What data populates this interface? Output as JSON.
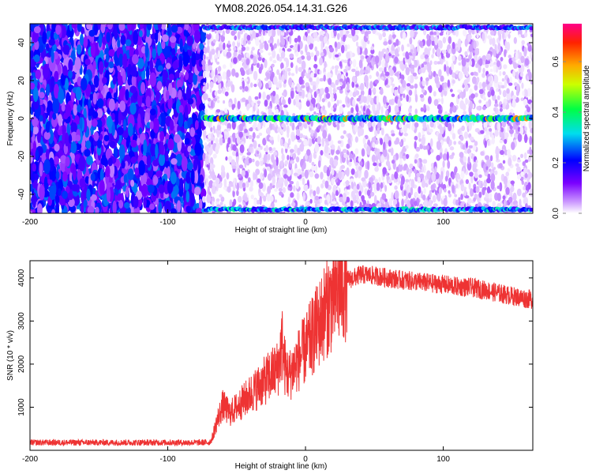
{
  "title": "YM08.2026.054.14.31.G26",
  "chart_data": [
    {
      "type": "heatmap",
      "xlabel": "Height of straight line (km)",
      "ylabel": "Frequency (Hz)",
      "xlim": [
        -200,
        165
      ],
      "ylim": [
        -50,
        50
      ],
      "xticks": [
        -200,
        -100,
        0,
        100
      ],
      "yticks": [
        -40,
        -20,
        0,
        20,
        40
      ],
      "colorbar": {
        "label": "Normalized spectral amplitude",
        "range": [
          0.0,
          0.75
        ],
        "ticks": [
          0.0,
          0.2,
          0.4,
          0.6
        ]
      },
      "features": [
        {
          "kind": "noise",
          "x": [
            -200,
            -74
          ],
          "density": "high",
          "level": 0.18
        },
        {
          "kind": "noise",
          "x": [
            -74,
            165
          ],
          "density": "sparse",
          "level": 0.05
        },
        {
          "kind": "carrier",
          "y": 0,
          "x": [
            -74,
            165
          ],
          "level": 0.3
        },
        {
          "kind": "edge-band",
          "y": -48,
          "x": [
            -74,
            165
          ],
          "level": 0.25
        },
        {
          "kind": "edge-band",
          "y": 48,
          "x": [
            -74,
            165
          ],
          "level": 0.2
        }
      ]
    },
    {
      "type": "line",
      "xlabel": "Height of straight line (km)",
      "ylabel": "SNR (10 * v/v)",
      "xlim": [
        -200,
        165
      ],
      "ylim": [
        0,
        4400
      ],
      "xticks": [
        -200,
        -100,
        0,
        100
      ],
      "yticks": [
        1000,
        2000,
        3000,
        4000
      ],
      "color": "#ee3333",
      "series": [
        {
          "x": [
            -200,
            -150,
            -100,
            -70,
            -68,
            -65,
            -60,
            -55,
            -50,
            -45,
            -40,
            -35,
            -30,
            -25,
            -20,
            -17,
            -15,
            -12,
            -10,
            -5,
            0,
            5,
            10,
            15,
            20,
            25,
            30,
            35,
            40,
            50,
            60,
            70,
            80,
            90,
            100,
            110,
            120,
            130,
            140,
            150,
            160,
            165
          ],
          "y": [
            180,
            180,
            180,
            180,
            250,
            600,
            1050,
            850,
            1000,
            1150,
            1300,
            1450,
            1600,
            1750,
            1900,
            2500,
            1950,
            1700,
            1850,
            2100,
            2350,
            2650,
            2950,
            3300,
            3550,
            3750,
            3950,
            4000,
            4080,
            4050,
            4000,
            3950,
            3920,
            3880,
            3850,
            3800,
            3780,
            3720,
            3650,
            3580,
            3520,
            3500
          ]
        }
      ]
    }
  ]
}
